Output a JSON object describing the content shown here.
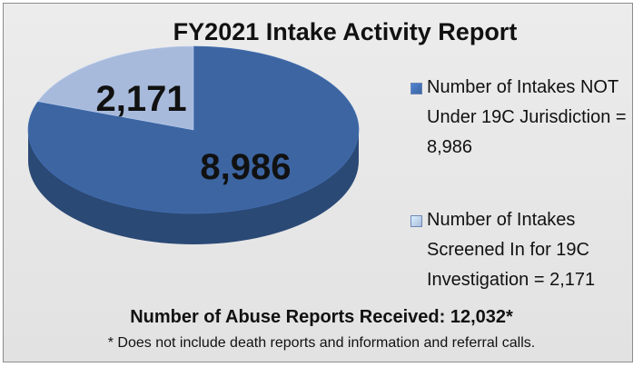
{
  "chart_data": {
    "type": "pie",
    "title": "FY2021 Intake Activity Report",
    "categories": [
      "Number of Intakes NOT Under 19C Jurisdiction = 8,986",
      "Number of Intakes Screened In for 19C Investigation = 2,171"
    ],
    "values": [
      8986,
      2171
    ],
    "value_labels": [
      "8,986",
      "2,171"
    ],
    "colors": [
      "#3c65a2",
      "#a8badb"
    ],
    "legend": "right",
    "three_d": true,
    "annotations": [
      "Number of Abuse Reports Received: 12,032*",
      "* Does not include death reports and information and referral calls."
    ]
  }
}
